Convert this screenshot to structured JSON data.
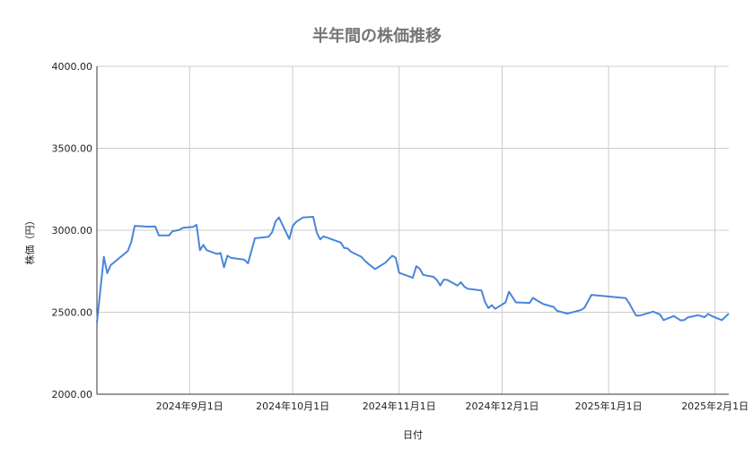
{
  "chart_data": {
    "type": "line",
    "title": "半年間の株価推移",
    "xlabel": "日付",
    "ylabel": "株価（円）",
    "ylim": [
      2000,
      4000
    ],
    "xlim": [
      "2024-08-05",
      "2025-02-05"
    ],
    "grid": true,
    "legend": "none",
    "line_color": "#4a86d8",
    "y_ticks": [
      {
        "value": 2000,
        "label": "2000.00"
      },
      {
        "value": 2500,
        "label": "2500.00"
      },
      {
        "value": 3000,
        "label": "3000.00"
      },
      {
        "value": 3500,
        "label": "3500.00"
      },
      {
        "value": 4000,
        "label": "4000.00"
      }
    ],
    "x_ticks": [
      {
        "value": "2024-09-01",
        "label": "2024年9月1日"
      },
      {
        "value": "2024-10-01",
        "label": "2024年10月1日"
      },
      {
        "value": "2024-11-01",
        "label": "2024年11月1日"
      },
      {
        "value": "2024-12-01",
        "label": "2024年12月1日"
      },
      {
        "value": "2025-01-01",
        "label": "2025年1月1日"
      },
      {
        "value": "2025-02-01",
        "label": "2025年2月1日"
      }
    ],
    "series": [
      {
        "x": [
          "2024-08-05",
          "2024-08-07",
          "2024-08-08",
          "2024-08-09",
          "2024-08-14",
          "2024-08-15",
          "2024-08-16",
          "2024-08-20",
          "2024-08-22",
          "2024-08-23",
          "2024-08-26",
          "2024-08-27",
          "2024-08-29",
          "2024-08-30",
          "2024-09-02",
          "2024-09-03",
          "2024-09-04",
          "2024-09-05",
          "2024-09-06",
          "2024-09-09",
          "2024-09-10",
          "2024-09-11",
          "2024-09-12",
          "2024-09-13",
          "2024-09-17",
          "2024-09-18",
          "2024-09-20",
          "2024-09-24",
          "2024-09-25",
          "2024-09-26",
          "2024-09-27",
          "2024-09-30",
          "2024-10-01",
          "2024-10-02",
          "2024-10-04",
          "2024-10-07",
          "2024-10-08",
          "2024-10-09",
          "2024-10-10",
          "2024-10-15",
          "2024-10-16",
          "2024-10-17",
          "2024-10-18",
          "2024-10-21",
          "2024-10-22",
          "2024-10-23",
          "2024-10-25",
          "2024-10-28",
          "2024-10-30",
          "2024-10-31",
          "2024-11-01",
          "2024-11-05",
          "2024-11-06",
          "2024-11-07",
          "2024-11-08",
          "2024-11-11",
          "2024-11-12",
          "2024-11-13",
          "2024-11-14",
          "2024-11-15",
          "2024-11-18",
          "2024-11-19",
          "2024-11-20",
          "2024-11-21",
          "2024-11-25",
          "2024-11-26",
          "2024-11-27",
          "2024-11-28",
          "2024-11-29",
          "2024-12-02",
          "2024-12-03",
          "2024-12-05",
          "2024-12-09",
          "2024-12-10",
          "2024-12-11",
          "2024-12-13",
          "2024-12-16",
          "2024-12-17",
          "2024-12-20",
          "2024-12-23",
          "2024-12-24",
          "2024-12-25",
          "2024-12-27",
          "2025-01-06",
          "2025-01-07",
          "2025-01-09",
          "2025-01-10",
          "2025-01-14",
          "2025-01-16",
          "2025-01-17",
          "2025-01-20",
          "2025-01-22",
          "2025-01-23",
          "2025-01-24",
          "2025-01-27",
          "2025-01-29",
          "2025-01-30",
          "2025-01-31",
          "2025-02-03",
          "2025-02-05"
        ],
        "values": [
          2437,
          2838,
          2738,
          2787,
          2874,
          2929,
          3027,
          3022,
          3023,
          2969,
          2969,
          2994,
          3002,
          3015,
          3020,
          3033,
          2878,
          2911,
          2878,
          2856,
          2862,
          2774,
          2845,
          2832,
          2820,
          2798,
          2951,
          2960,
          2987,
          3053,
          3078,
          2947,
          3025,
          3051,
          3078,
          3082,
          2987,
          2944,
          2963,
          2925,
          2892,
          2889,
          2869,
          2838,
          2814,
          2796,
          2763,
          2802,
          2845,
          2832,
          2741,
          2710,
          2781,
          2765,
          2728,
          2716,
          2696,
          2663,
          2699,
          2697,
          2663,
          2683,
          2656,
          2643,
          2632,
          2564,
          2525,
          2543,
          2521,
          2560,
          2625,
          2560,
          2557,
          2588,
          2574,
          2550,
          2532,
          2508,
          2492,
          2508,
          2514,
          2528,
          2606,
          2586,
          2556,
          2479,
          2479,
          2504,
          2486,
          2452,
          2477,
          2450,
          2452,
          2468,
          2482,
          2470,
          2490,
          2477,
          2452,
          2492
        ]
      }
    ]
  }
}
